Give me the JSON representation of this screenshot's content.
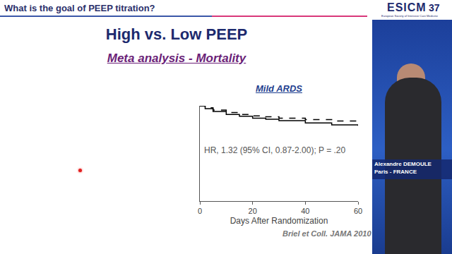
{
  "slide": {
    "header": "What is the goal of PEEP titration?",
    "logo": "ESICM",
    "logo_subtitle": "European Society of Intensive Care Medicine",
    "congress": "37",
    "title": "High vs. Low PEEP",
    "subtitle": "Meta analysis - Mortality",
    "citation": "Briel et Coll. JAMA 2010",
    "speaker": {
      "name": "Alexandre DEMOULE",
      "place": "Paris - FRANCE"
    }
  },
  "chart_data": {
    "type": "line",
    "title": "Mild ARDS",
    "x_label": "Days After Randomization",
    "x": [
      0,
      2,
      5,
      10,
      15,
      20,
      25,
      30,
      40,
      50,
      60
    ],
    "series": [
      {
        "color": "#000000",
        "line_style": "solid",
        "values": [
          1.0,
          0.97,
          0.94,
          0.91,
          0.89,
          0.87,
          0.86,
          0.845,
          0.82,
          0.8,
          0.79
        ]
      },
      {
        "color": "#000000",
        "line_style": "dashed",
        "values": [
          1.0,
          0.98,
          0.955,
          0.93,
          0.91,
          0.895,
          0.885,
          0.87,
          0.855,
          0.84,
          0.835
        ]
      }
    ],
    "xlim": [
      0,
      60
    ],
    "xticks": [
      0,
      20,
      40,
      60
    ],
    "ylim": [
      0,
      1
    ],
    "tick_labels": "x",
    "grid": false,
    "annotations": [
      "HR, 1.32 (95% CI, 0.87-2.00); P = .20"
    ]
  }
}
